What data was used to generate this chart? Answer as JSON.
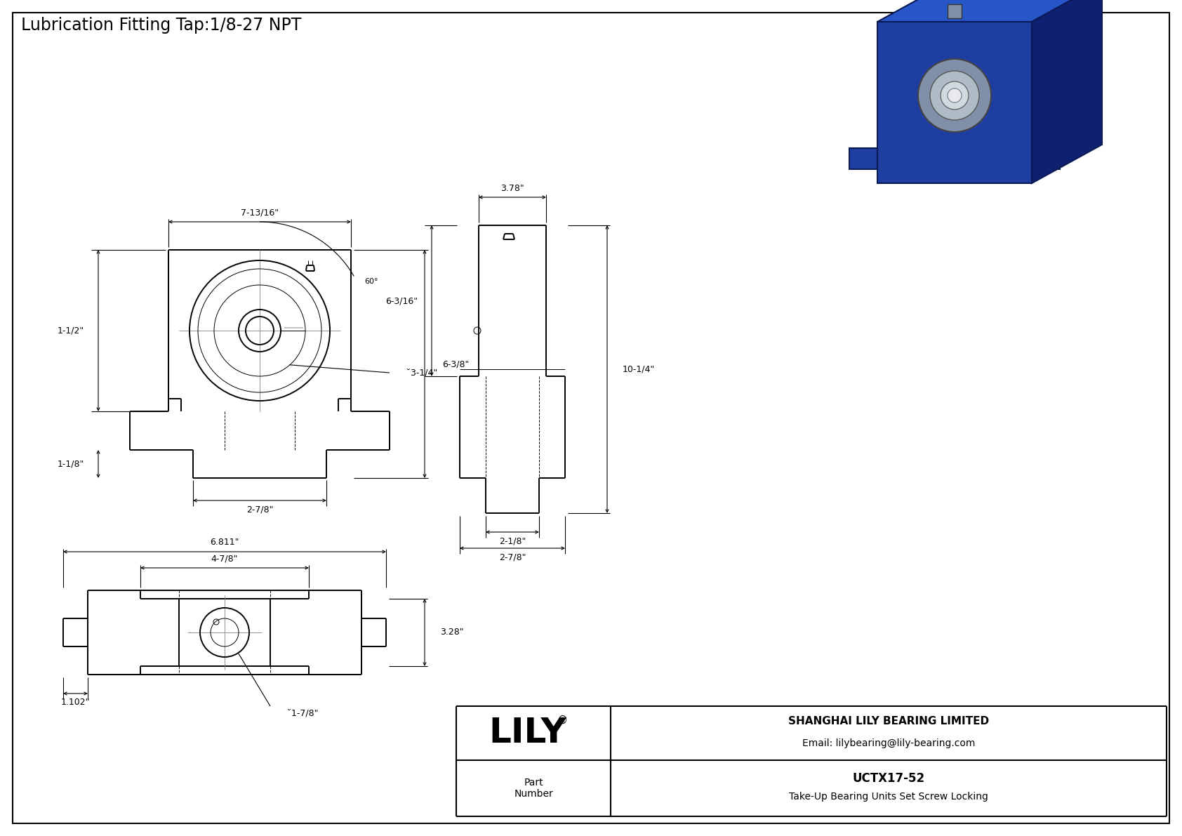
{
  "title": "Lubrication Fitting Tap:1/8-27 NPT",
  "bg_color": "#ffffff",
  "line_color": "#000000",
  "border_color": "#000000",
  "lily_logo": "LILY",
  "lily_registered": "®",
  "company": "SHANGHAI LILY BEARING LIMITED",
  "email": "Email: lilybearing@lily-bearing.com",
  "part_label": "Part\nNumber",
  "part_number": "UCTX17-52",
  "part_desc": "Take-Up Bearing Units Set Screw Locking",
  "dims_front": {
    "width_top": "7-13/16\"",
    "height_right": "6-3/8\"",
    "height_left": "1-1/2\"",
    "height_bottom_left": "1-1/8\"",
    "width_bottom": "2-7/8\"",
    "angle": "60°",
    "dia_label": "̆3-1/4\""
  },
  "dims_side": {
    "width_top": "3.78\"",
    "height_total": "10-1/4\"",
    "height_upper": "6-3/16\"",
    "width_bottom1": "2-1/8\"",
    "width_bottom2": "2-7/8\""
  },
  "dims_bottom": {
    "width_total": "6.811\"",
    "width_inner": "4-7/8\"",
    "height": "3.28\"",
    "height_left": "1.102\"",
    "bore_dia": "̆1-7/8\""
  }
}
